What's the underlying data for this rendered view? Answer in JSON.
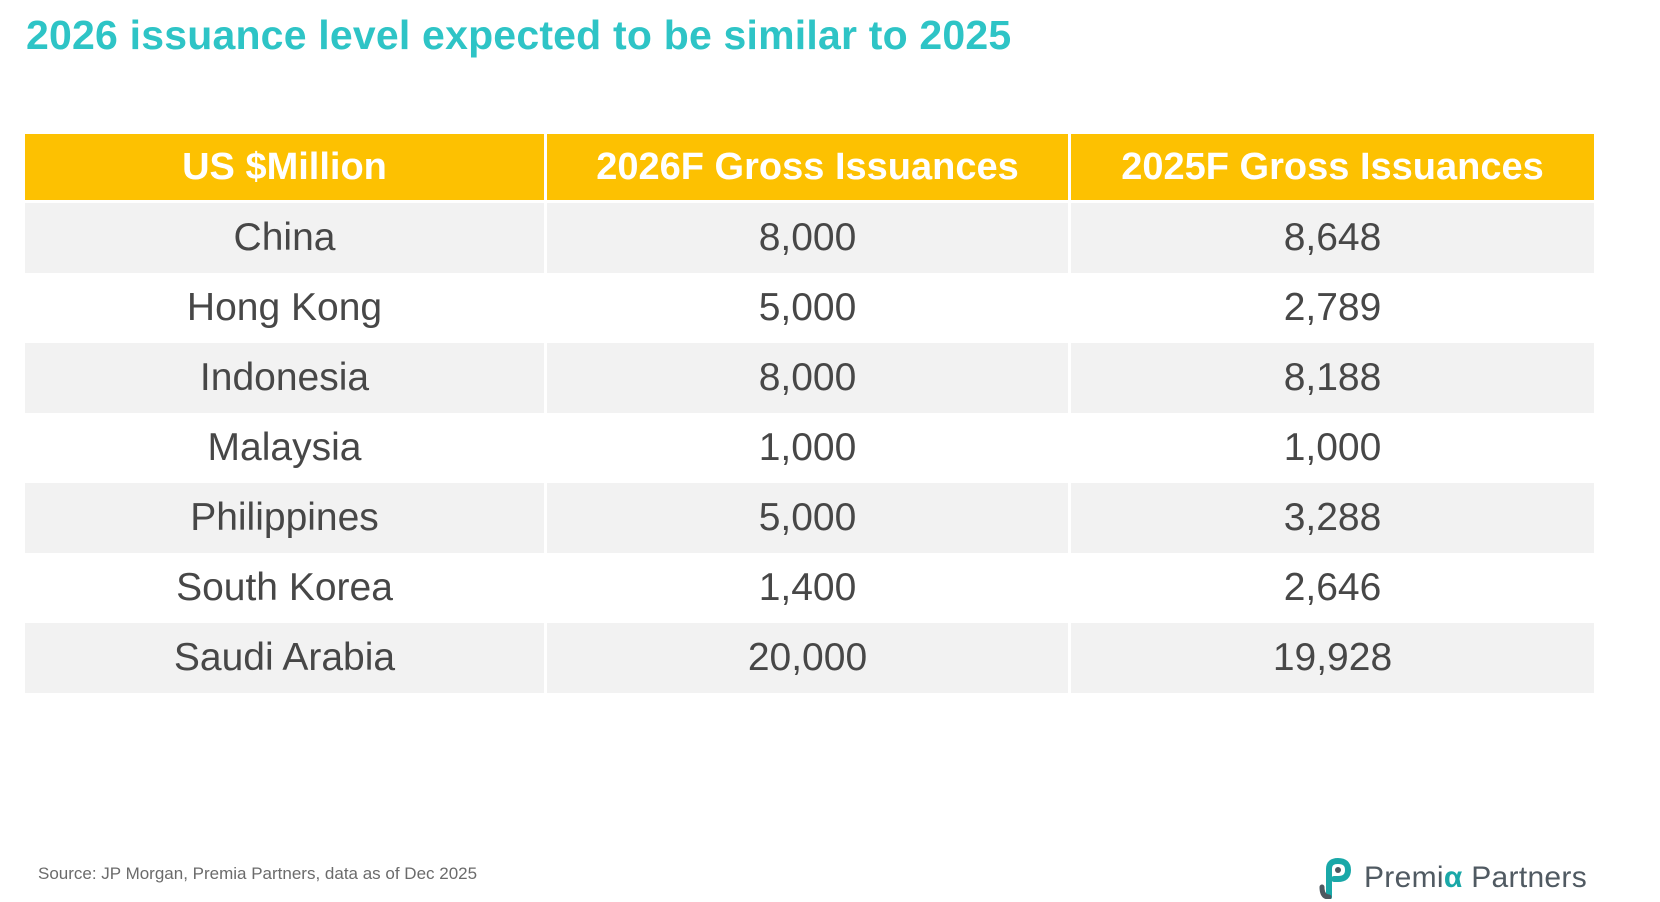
{
  "title": "2026 issuance level expected to be similar to 2025",
  "chart_data": {
    "type": "table",
    "columns": [
      "US $Million",
      "2026F Gross Issuances",
      "2025F Gross Issuances"
    ],
    "rows": [
      {
        "country": "China",
        "f2026": "8,000",
        "f2025": "8,648"
      },
      {
        "country": "Hong Kong",
        "f2026": "5,000",
        "f2025": "2,789"
      },
      {
        "country": "Indonesia",
        "f2026": "8,000",
        "f2025": "8,188"
      },
      {
        "country": "Malaysia",
        "f2026": "1,000",
        "f2025": "1,000"
      },
      {
        "country": "Philippines",
        "f2026": "5,000",
        "f2025": "3,288"
      },
      {
        "country": "South Korea",
        "f2026": "1,400",
        "f2025": "2,646"
      },
      {
        "country": "Saudi Arabia",
        "f2026": "20,000",
        "f2025": "19,928"
      }
    ]
  },
  "source": "Source: JP Morgan, Premia Partners, data as of Dec 2025",
  "logo": {
    "prefix": "Premi",
    "alpha": "α",
    "suffix": " Partners",
    "icon": "premia-p-icon"
  },
  "colors": {
    "title": "#2ec4c6",
    "header_bg": "#fdc101",
    "row_shade": "#f2f2f2",
    "cell_text": "#474747",
    "logo_teal": "#1aa8a8"
  }
}
